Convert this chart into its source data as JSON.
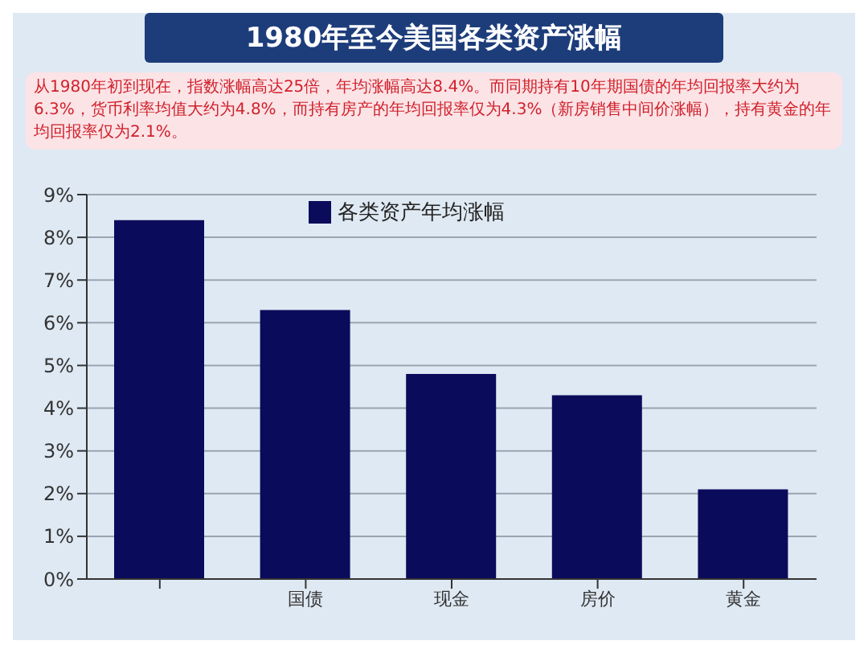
{
  "chart_data": {
    "type": "bar",
    "title": "1980年至今美国各类资产涨幅",
    "subtitle": "从1980年初到现在，指数涨幅高达25倍，年均涨幅高达8.4%。而同期持有10年期国债的年均回报率大约为6.3%，货币利率均值大约为4.8%，而持有房产的年均回报率仅为4.3%（新房销售中间价涨幅），持有黄金的年均回报率仅为2.1%。",
    "categories": [
      null,
      "国债",
      "现金",
      "房价",
      "黄金"
    ],
    "series": [
      {
        "name": "各类资产年均涨幅",
        "color": "#0b0b5c",
        "values": [
          8.4,
          6.3,
          4.8,
          4.3,
          2.1
        ]
      }
    ],
    "ylim": [
      0,
      9
    ],
    "yticks": [
      {
        "value": 0,
        "label": "0%"
      },
      {
        "value": 1,
        "label": "1%"
      },
      {
        "value": 2,
        "label": "2%"
      },
      {
        "value": 3,
        "label": "3%"
      },
      {
        "value": 4,
        "label": "4%"
      },
      {
        "value": 5,
        "label": "5%"
      },
      {
        "value": 6,
        "label": "6%"
      },
      {
        "value": 7,
        "label": "7%"
      },
      {
        "value": 8,
        "label": "8%"
      },
      {
        "value": 9,
        "label": "9%"
      }
    ],
    "grid": "y",
    "legend": "top"
  }
}
